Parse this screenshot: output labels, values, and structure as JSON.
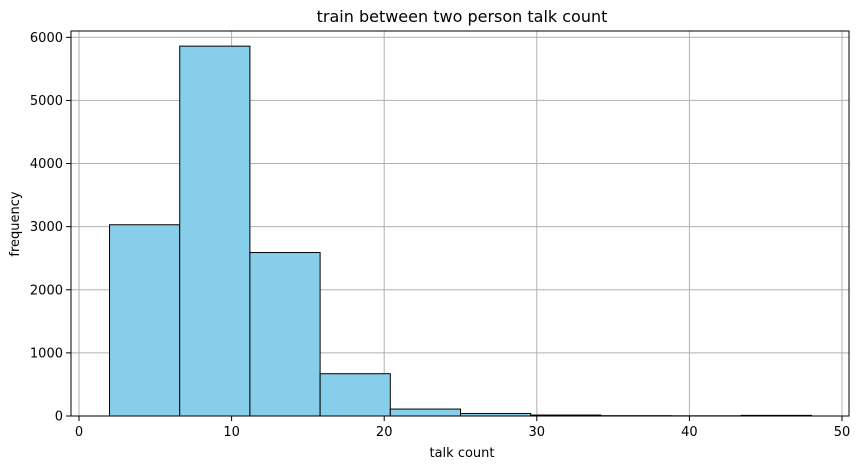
{
  "chart_data": {
    "type": "bar",
    "subtype": "histogram",
    "title": "train between two person talk count",
    "xlabel": "talk count",
    "ylabel": "frequency",
    "xlim": [
      0,
      50
    ],
    "ylim": [
      0,
      6100
    ],
    "xticks": [
      0,
      10,
      20,
      30,
      40,
      50
    ],
    "yticks": [
      0,
      1000,
      2000,
      3000,
      4000,
      5000,
      6000
    ],
    "grid": true,
    "bar_color": "#87ceeb",
    "edge_color": "#000000",
    "bins": [
      {
        "start": 2.0,
        "end": 6.6,
        "value": 3030
      },
      {
        "start": 6.6,
        "end": 11.2,
        "value": 5860
      },
      {
        "start": 11.2,
        "end": 15.8,
        "value": 2590
      },
      {
        "start": 15.8,
        "end": 20.4,
        "value": 670
      },
      {
        "start": 20.4,
        "end": 25.0,
        "value": 110
      },
      {
        "start": 25.0,
        "end": 29.6,
        "value": 40
      },
      {
        "start": 29.6,
        "end": 34.2,
        "value": 15
      },
      {
        "start": 34.2,
        "end": 38.8,
        "value": 5
      },
      {
        "start": 38.8,
        "end": 43.4,
        "value": 3
      },
      {
        "start": 43.4,
        "end": 48.0,
        "value": 10
      }
    ]
  }
}
